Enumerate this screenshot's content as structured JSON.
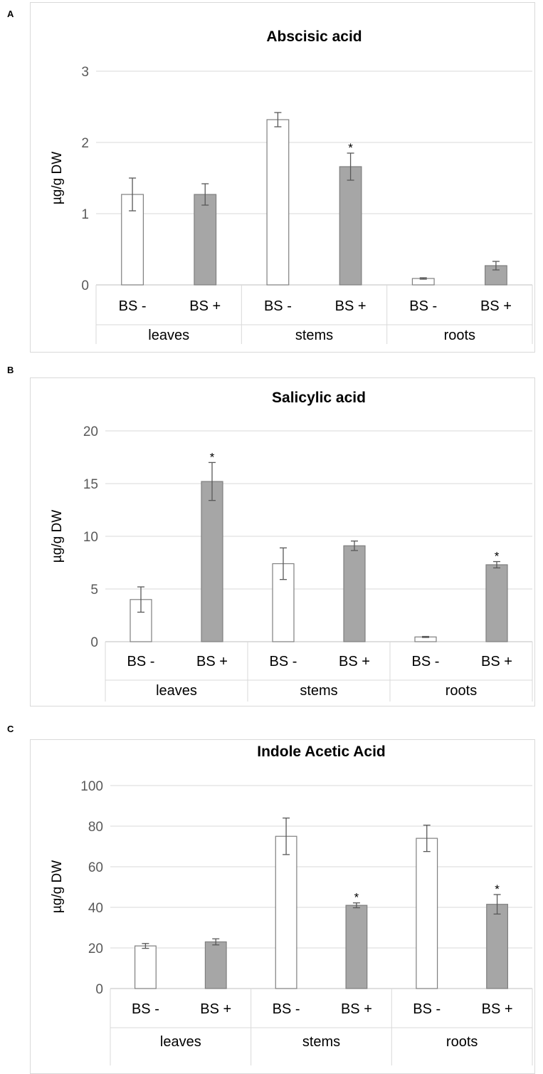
{
  "chart_data": [
    {
      "panel": "A",
      "type": "bar",
      "title": "Abscisic acid",
      "ylabel": "µg/g DW",
      "ylim": [
        0,
        3
      ],
      "yticks": [
        0,
        1,
        2,
        3
      ],
      "groups": [
        "leaves",
        "stems",
        "roots"
      ],
      "categories": [
        "BS -",
        "BS +",
        "BS -",
        "BS +",
        "BS -",
        "BS +"
      ],
      "series": [
        {
          "values": [
            1.27,
            1.27,
            2.32,
            1.66,
            0.09,
            0.27
          ],
          "errors": [
            0.23,
            0.15,
            0.1,
            0.19,
            0.01,
            0.06
          ],
          "colors": [
            "#ffffff",
            "#a6a6a6",
            "#ffffff",
            "#a6a6a6",
            "#ffffff",
            "#a6a6a6"
          ],
          "significant": [
            false,
            false,
            false,
            true,
            false,
            false
          ]
        }
      ],
      "grid": true
    },
    {
      "panel": "B",
      "type": "bar",
      "title": "Salicylic acid",
      "ylabel": "µg/g DW",
      "ylim": [
        0,
        20
      ],
      "yticks": [
        0,
        5,
        10,
        15,
        20
      ],
      "groups": [
        "leaves",
        "stems",
        "roots"
      ],
      "categories": [
        "BS -",
        "BS +",
        "BS -",
        "BS +",
        "BS -",
        "BS +"
      ],
      "series": [
        {
          "values": [
            4.0,
            15.2,
            7.4,
            9.1,
            0.45,
            7.3
          ],
          "errors": [
            1.2,
            1.8,
            1.5,
            0.45,
            0.05,
            0.3
          ],
          "colors": [
            "#ffffff",
            "#a6a6a6",
            "#ffffff",
            "#a6a6a6",
            "#ffffff",
            "#a6a6a6"
          ],
          "significant": [
            false,
            true,
            false,
            false,
            false,
            true
          ]
        }
      ],
      "grid": true
    },
    {
      "panel": "C",
      "type": "bar",
      "title": "Indole Acetic Acid",
      "ylabel": "µg/g DW",
      "ylim": [
        0,
        100
      ],
      "yticks": [
        0,
        20,
        40,
        60,
        80,
        100
      ],
      "groups": [
        "leaves",
        "stems",
        "roots"
      ],
      "categories": [
        "BS -",
        "BS +",
        "BS -",
        "BS +",
        "BS -",
        "BS +"
      ],
      "series": [
        {
          "values": [
            21,
            23,
            75,
            41,
            74,
            41.5
          ],
          "errors": [
            1.2,
            1.5,
            9,
            1.2,
            6.5,
            4.8
          ],
          "colors": [
            "#ffffff",
            "#a6a6a6",
            "#ffffff",
            "#a6a6a6",
            "#ffffff",
            "#a6a6a6"
          ],
          "significant": [
            false,
            false,
            false,
            true,
            false,
            true
          ]
        }
      ],
      "grid": true
    }
  ],
  "significance_mark": "*"
}
